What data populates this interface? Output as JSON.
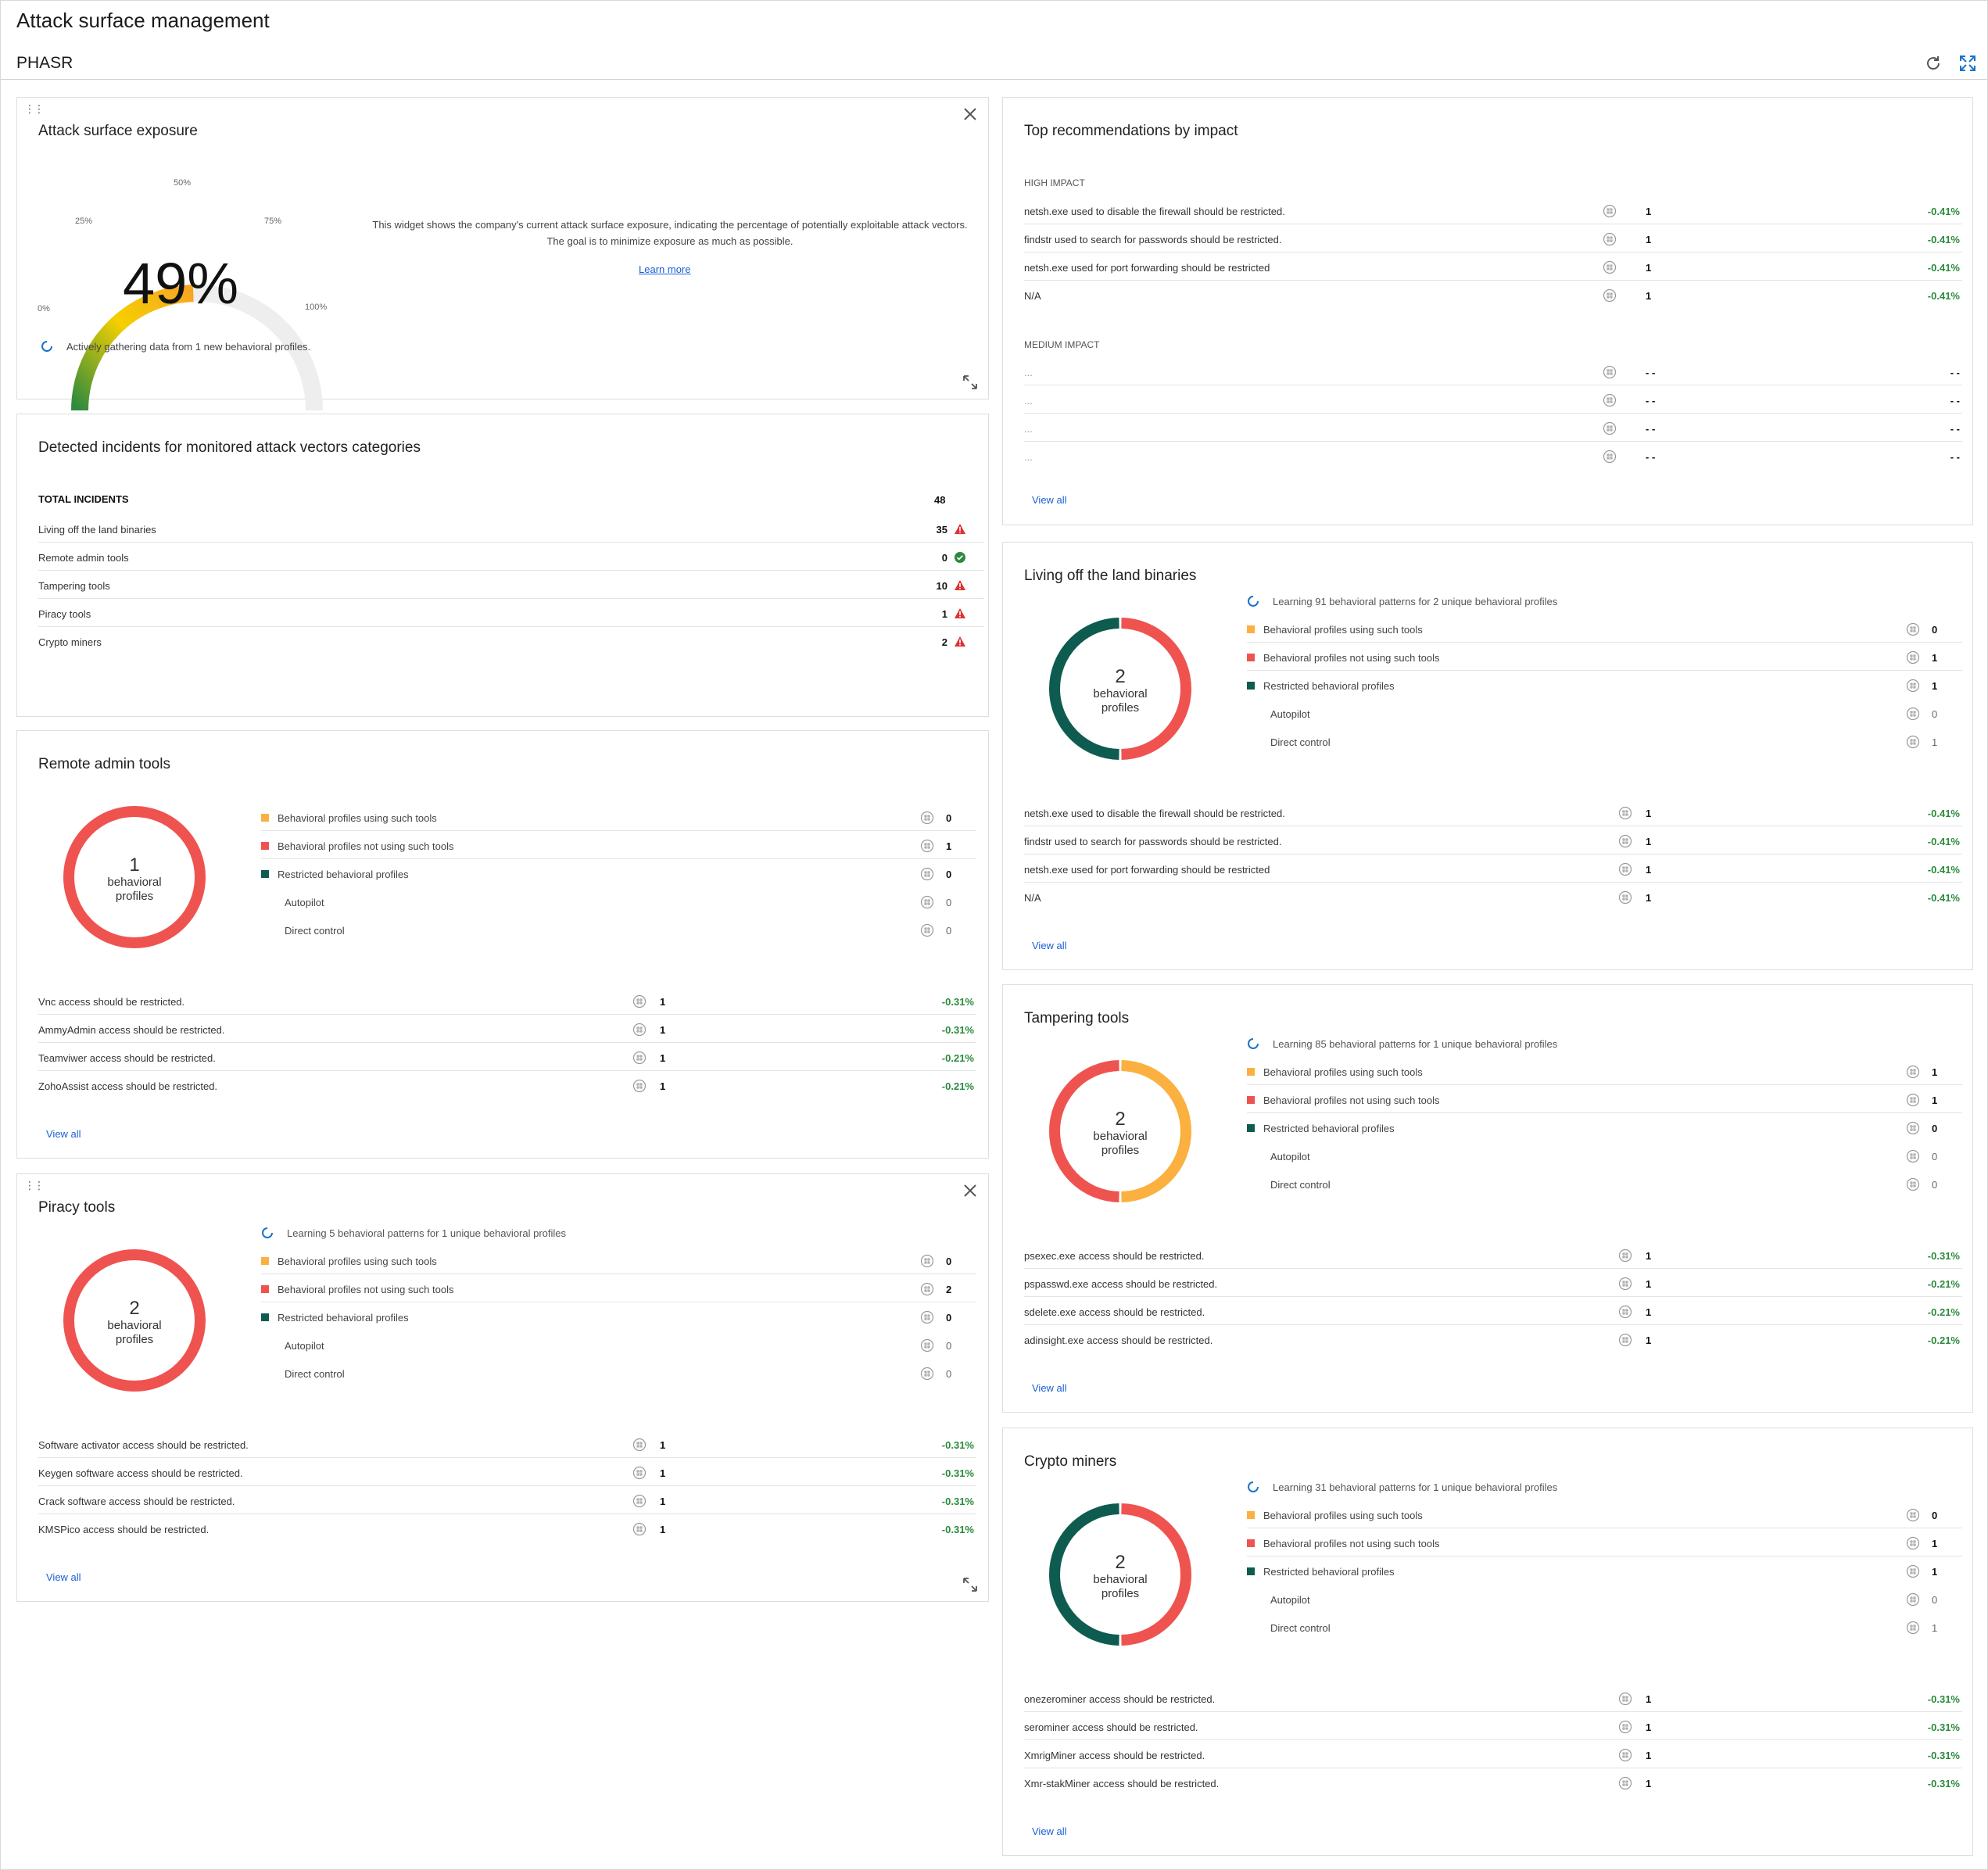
{
  "header": {
    "title": "Attack surface management",
    "subtitle": "PHASR"
  },
  "exposure": {
    "title": "Attack surface exposure",
    "value": 49,
    "value_text": "49%",
    "ticks": {
      "t0": "0%",
      "t25": "25%",
      "t50": "50%",
      "t75": "75%",
      "t100": "100%"
    },
    "description": "This widget shows the company's current attack surface exposure, indicating the percentage of potentially exploitable attack vectors. The goal is to minimize exposure as much as possible.",
    "learn_more": "Learn more",
    "gathering": "Actively gathering data from 1 new behavioral profiles."
  },
  "incidents": {
    "title": "Detected incidents for monitored attack vectors categories",
    "total_label": "TOTAL INCIDENTS",
    "total": "48",
    "rows": [
      {
        "label": "Living off the land binaries",
        "count": "35",
        "status": "warning"
      },
      {
        "label": "Remote admin tools",
        "count": "0",
        "status": "ok"
      },
      {
        "label": "Tampering tools",
        "count": "10",
        "status": "warning"
      },
      {
        "label": "Piracy tools",
        "count": "1",
        "status": "warning"
      },
      {
        "label": "Crypto miners",
        "count": "2",
        "status": "warning"
      }
    ]
  },
  "recommendations": {
    "title": "Top recommendations by impact",
    "high_label": "HIGH IMPACT",
    "high": [
      {
        "text": "netsh.exe used to disable the firewall should be restricted.",
        "count": "1",
        "impact": "-0.41%"
      },
      {
        "text": "findstr used to search for passwords should be restricted.",
        "count": "1",
        "impact": "-0.41%"
      },
      {
        "text": "netsh.exe used for port forwarding should be restricted",
        "count": "1",
        "impact": "-0.41%"
      },
      {
        "text": "N/A",
        "count": "1",
        "impact": "-0.41%"
      }
    ],
    "medium_label": "MEDIUM IMPACT",
    "medium": [
      {
        "text": "...",
        "count": "- -",
        "impact": "- -"
      },
      {
        "text": "...",
        "count": "- -",
        "impact": "- -"
      },
      {
        "text": "...",
        "count": "- -",
        "impact": "- -"
      },
      {
        "text": "...",
        "count": "- -",
        "impact": "- -"
      }
    ],
    "view_all": "View all"
  },
  "categories": [
    {
      "title": "Remote admin tools",
      "learning": "",
      "donut": {
        "number": "1",
        "label1": "behavioral",
        "label2": "profiles",
        "segments": [
          {
            "color": "#ef5350",
            "value": 1
          }
        ]
      },
      "legend": [
        {
          "label": "Behavioral profiles using such tools",
          "value": "0",
          "color": "#fbb040"
        },
        {
          "label": "Behavioral profiles not using such tools",
          "value": "1",
          "color": "#ef5350"
        },
        {
          "label": "Restricted behavioral profiles",
          "value": "0",
          "color": "#0e5c4f"
        },
        {
          "label": "Autopilot",
          "value": "0"
        },
        {
          "label": "Direct control",
          "value": "0"
        }
      ],
      "recs": [
        {
          "text": "Vnc access should be restricted.",
          "count": "1",
          "impact": "-0.31%"
        },
        {
          "text": "AmmyAdmin access should be restricted.",
          "count": "1",
          "impact": "-0.31%"
        },
        {
          "text": "Teamviwer access should be restricted.",
          "count": "1",
          "impact": "-0.21%"
        },
        {
          "text": "ZohoAssist access should be restricted.",
          "count": "1",
          "impact": "-0.21%"
        }
      ],
      "view_all": "View all"
    },
    {
      "title": "Piracy tools",
      "learning": "Learning 5 behavioral patterns for 1 unique behavioral profiles",
      "donut": {
        "number": "2",
        "label1": "behavioral",
        "label2": "profiles",
        "segments": [
          {
            "color": "#ef5350",
            "value": 2
          }
        ]
      },
      "legend": [
        {
          "label": "Behavioral profiles using such tools",
          "value": "0",
          "color": "#fbb040"
        },
        {
          "label": "Behavioral profiles not using such tools",
          "value": "2",
          "color": "#ef5350"
        },
        {
          "label": "Restricted behavioral profiles",
          "value": "0",
          "color": "#0e5c4f"
        },
        {
          "label": "Autopilot",
          "value": "0"
        },
        {
          "label": "Direct control",
          "value": "0"
        }
      ],
      "recs": [
        {
          "text": "Software activator access should be restricted.",
          "count": "1",
          "impact": "-0.31%"
        },
        {
          "text": "Keygen software access should be restricted.",
          "count": "1",
          "impact": "-0.31%"
        },
        {
          "text": "Crack software access should be restricted.",
          "count": "1",
          "impact": "-0.31%"
        },
        {
          "text": "KMSPico access should be restricted.",
          "count": "1",
          "impact": "-0.31%"
        }
      ],
      "view_all": "View all"
    },
    {
      "title": "Living off the land binaries",
      "learning": "Learning 91 behavioral patterns for 2 unique behavioral profiles",
      "donut": {
        "number": "2",
        "label1": "behavioral",
        "label2": "profiles",
        "segments": [
          {
            "color": "#ef5350",
            "value": 1
          },
          {
            "color": "#0e5c4f",
            "value": 1
          }
        ]
      },
      "legend": [
        {
          "label": "Behavioral profiles using such tools",
          "value": "0",
          "color": "#fbb040"
        },
        {
          "label": "Behavioral profiles not using such tools",
          "value": "1",
          "color": "#ef5350"
        },
        {
          "label": "Restricted behavioral profiles",
          "value": "1",
          "color": "#0e5c4f"
        },
        {
          "label": "Autopilot",
          "value": "0"
        },
        {
          "label": "Direct control",
          "value": "1"
        }
      ],
      "recs": [
        {
          "text": "netsh.exe used to disable the firewall should be restricted.",
          "count": "1",
          "impact": "-0.41%"
        },
        {
          "text": "findstr used to search for passwords should be restricted.",
          "count": "1",
          "impact": "-0.41%"
        },
        {
          "text": "netsh.exe used for port forwarding should be restricted",
          "count": "1",
          "impact": "-0.41%"
        },
        {
          "text": "N/A",
          "count": "1",
          "impact": "-0.41%"
        }
      ],
      "view_all": "View all"
    },
    {
      "title": "Tampering tools",
      "learning": "Learning 85 behavioral patterns for 1 unique behavioral profiles",
      "donut": {
        "number": "2",
        "label1": "behavioral",
        "label2": "profiles",
        "segments": [
          {
            "color": "#fbb040",
            "value": 1
          },
          {
            "color": "#ef5350",
            "value": 1
          }
        ]
      },
      "legend": [
        {
          "label": "Behavioral profiles using such tools",
          "value": "1",
          "color": "#fbb040"
        },
        {
          "label": "Behavioral profiles not using such tools",
          "value": "1",
          "color": "#ef5350"
        },
        {
          "label": "Restricted behavioral profiles",
          "value": "0",
          "color": "#0e5c4f"
        },
        {
          "label": "Autopilot",
          "value": "0"
        },
        {
          "label": "Direct control",
          "value": "0"
        }
      ],
      "recs": [
        {
          "text": "psexec.exe access should be restricted.",
          "count": "1",
          "impact": "-0.31%"
        },
        {
          "text": "pspasswd.exe access should be restricted.",
          "count": "1",
          "impact": "-0.21%"
        },
        {
          "text": "sdelete.exe access should be restricted.",
          "count": "1",
          "impact": "-0.21%"
        },
        {
          "text": "adinsight.exe access should be restricted.",
          "count": "1",
          "impact": "-0.21%"
        }
      ],
      "view_all": "View all"
    },
    {
      "title": "Crypto miners",
      "learning": "Learning 31 behavioral patterns for 1 unique behavioral profiles",
      "donut": {
        "number": "2",
        "label1": "behavioral",
        "label2": "profiles",
        "segments": [
          {
            "color": "#ef5350",
            "value": 1
          },
          {
            "color": "#0e5c4f",
            "value": 1
          }
        ]
      },
      "legend": [
        {
          "label": "Behavioral profiles using such tools",
          "value": "0",
          "color": "#fbb040"
        },
        {
          "label": "Behavioral profiles not using such tools",
          "value": "1",
          "color": "#ef5350"
        },
        {
          "label": "Restricted behavioral profiles",
          "value": "1",
          "color": "#0e5c4f"
        },
        {
          "label": "Autopilot",
          "value": "0"
        },
        {
          "label": "Direct control",
          "value": "1"
        }
      ],
      "recs": [
        {
          "text": "onezerominer access should be restricted.",
          "count": "1",
          "impact": "-0.31%"
        },
        {
          "text": "serominer access should be restricted.",
          "count": "1",
          "impact": "-0.31%"
        },
        {
          "text": "XmrigMiner access should be restricted.",
          "count": "1",
          "impact": "-0.31%"
        },
        {
          "text": "Xmr-stakMiner access should be restricted.",
          "count": "1",
          "impact": "-0.31%"
        }
      ],
      "view_all": "View all"
    }
  ]
}
